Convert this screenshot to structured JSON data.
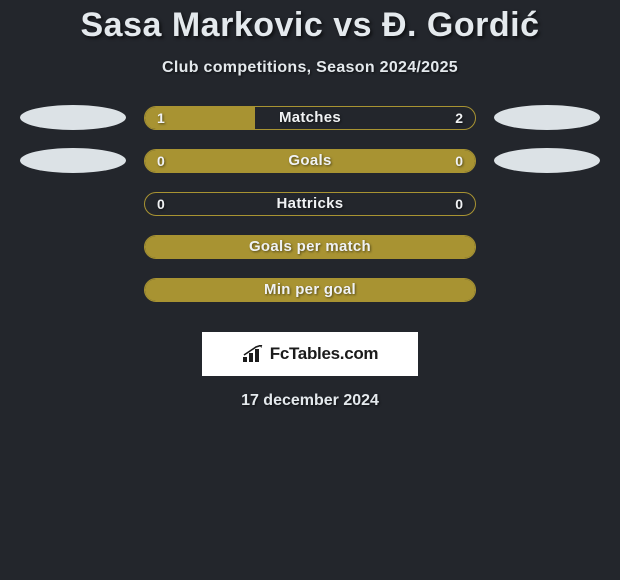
{
  "colors": {
    "background": "#23262c",
    "bar_fill": "#a89332",
    "bar_border": "#a89332",
    "text_light": "#e4e9ed",
    "ellipse": "#dce2e6",
    "logo_bg": "#ffffff",
    "logo_text": "#1b1b1b"
  },
  "title": "Sasa Markovic vs Đ. Gordić",
  "subtitle": "Club competitions, Season 2024/2025",
  "rows": [
    {
      "label": "Matches",
      "left_value": "1",
      "right_value": "2",
      "fill_left_pct": 33.3,
      "fill_right_pct": 0,
      "fill_full": false,
      "show_left_ellipse": true,
      "show_right_ellipse": true
    },
    {
      "label": "Goals",
      "left_value": "0",
      "right_value": "0",
      "fill_left_pct": 0,
      "fill_right_pct": 0,
      "fill_full": true,
      "show_left_ellipse": true,
      "show_right_ellipse": true
    },
    {
      "label": "Hattricks",
      "left_value": "0",
      "right_value": "0",
      "fill_left_pct": 0,
      "fill_right_pct": 0,
      "fill_full": false,
      "show_left_ellipse": false,
      "show_right_ellipse": false
    },
    {
      "label": "Goals per match",
      "left_value": "",
      "right_value": "",
      "fill_left_pct": 0,
      "fill_right_pct": 0,
      "fill_full": true,
      "show_left_ellipse": false,
      "show_right_ellipse": false
    },
    {
      "label": "Min per goal",
      "left_value": "",
      "right_value": "",
      "fill_left_pct": 0,
      "fill_right_pct": 0,
      "fill_full": true,
      "show_left_ellipse": false,
      "show_right_ellipse": false
    }
  ],
  "logo_text": "FcTables.com",
  "date": "17 december 2024",
  "typography": {
    "title_fontsize": 34,
    "subtitle_fontsize": 16,
    "bar_label_fontsize": 15,
    "bar_value_fontsize": 14
  }
}
